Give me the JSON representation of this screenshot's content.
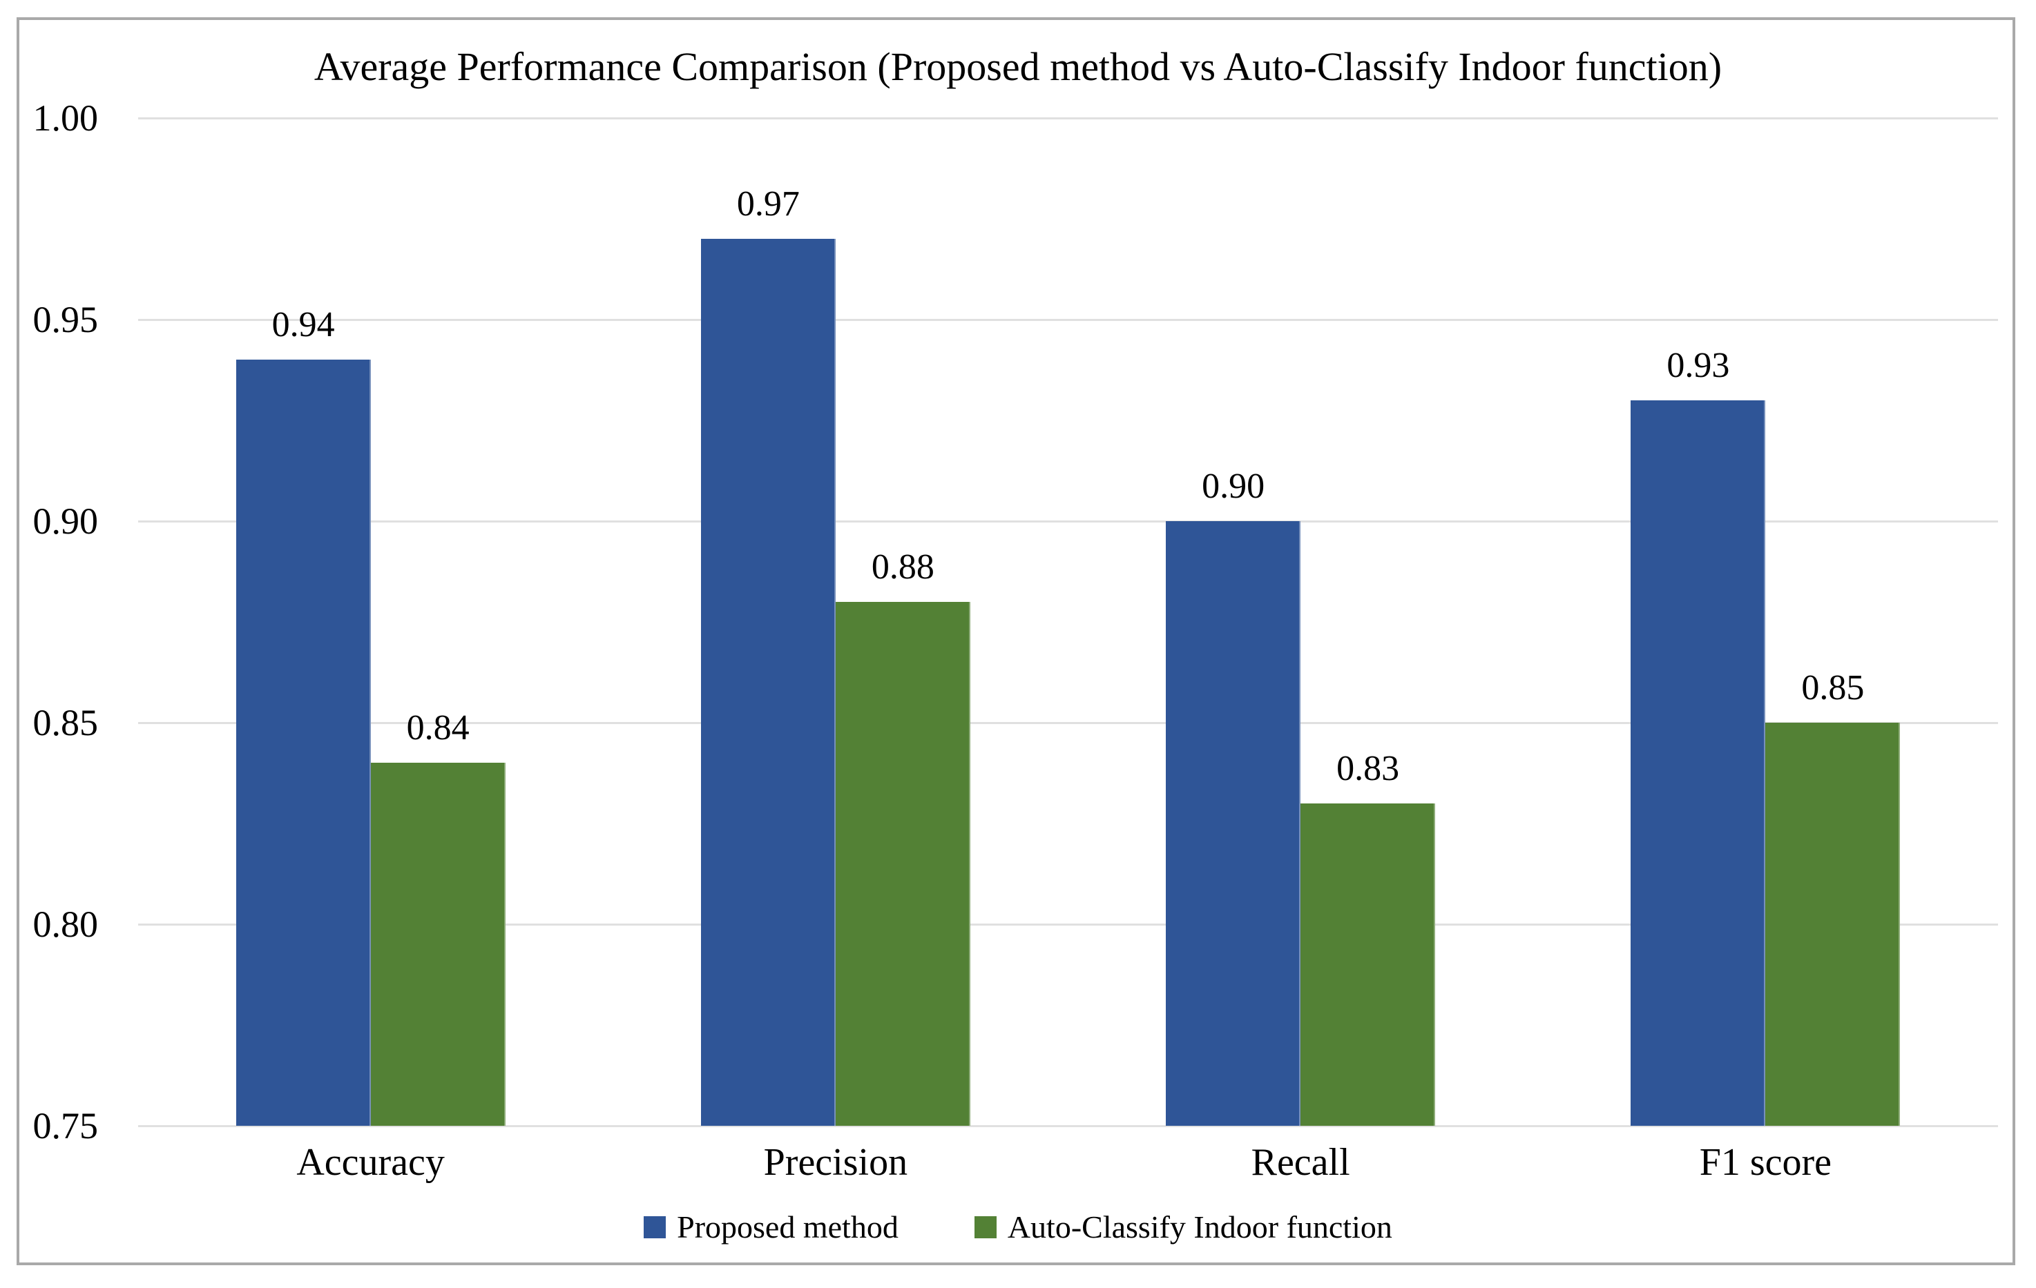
{
  "chart_data": {
    "type": "bar",
    "title": "Average Performance Comparison (Proposed method vs Auto-Classify Indoor function)",
    "categories": [
      "Accuracy",
      "Precision",
      "Recall",
      "F1 score"
    ],
    "series": [
      {
        "name": "Proposed method",
        "color": "#2F5597",
        "values": [
          0.94,
          0.97,
          0.9,
          0.93
        ]
      },
      {
        "name": "Auto-Classify Indoor function",
        "color": "#538135",
        "values": [
          0.84,
          0.88,
          0.83,
          0.85
        ]
      }
    ],
    "xlabel": "",
    "ylabel": "",
    "ylim": [
      0.75,
      1.0
    ],
    "ytick_step": 0.05,
    "ytick_labels": [
      "1.00",
      "0.95",
      "0.90",
      "0.85",
      "0.80",
      "0.75"
    ],
    "value_labels": true,
    "value_label_decimals": 2,
    "grid": true,
    "legend_position": "bottom",
    "colors": {
      "background": "#FFFFFF",
      "gridline": "#E0E0E0",
      "frame_border": "#A9A9A9",
      "text": "#000000"
    }
  }
}
